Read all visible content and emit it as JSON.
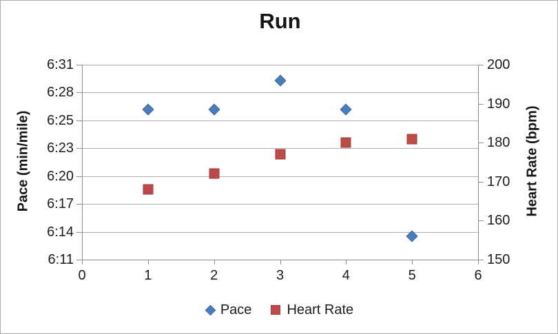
{
  "chart_data": {
    "type": "scatter",
    "title": "Run",
    "x_axis": {
      "min": 0,
      "max": 6,
      "tick_labels": [
        "0",
        "1",
        "2",
        "3",
        "4",
        "5",
        "6"
      ]
    },
    "left_axis": {
      "title": "Pace (min/mile)",
      "tick_labels_top_to_bottom": [
        "6:31",
        "6:28",
        "6:25",
        "6:23",
        "6:20",
        "6:17",
        "6:14",
        "6:11"
      ],
      "value_min_seconds": 371,
      "value_max_seconds": 391
    },
    "right_axis": {
      "title": "Heart Rate (bpm)",
      "min": 150,
      "max": 200,
      "tick_labels_top_to_bottom": [
        "200",
        "190",
        "180",
        "170",
        "160",
        "150"
      ]
    },
    "series": [
      {
        "name": "Pace",
        "axis": "left",
        "marker": "diamond",
        "fill_color": "#4a7ebb",
        "border_color": "#3a659c",
        "x": [
          1,
          2,
          3,
          4,
          5
        ],
        "values_display": [
          "6:26",
          "6:26",
          "6:29",
          "6:26",
          "6:13"
        ],
        "values_seconds": [
          386.4,
          386.4,
          389.4,
          386.4,
          373.4
        ]
      },
      {
        "name": "Heart Rate",
        "axis": "right",
        "marker": "square",
        "fill_color": "#be4b48",
        "border_color": "#9c3a38",
        "x": [
          1,
          2,
          3,
          4,
          5
        ],
        "values": [
          168,
          172,
          177,
          180,
          181
        ]
      }
    ],
    "legend": {
      "position": "bottom",
      "entries": [
        {
          "label": "Pace",
          "marker": "diamond",
          "color": "#4a7ebb",
          "border_color": "#3a659c"
        },
        {
          "label": "Heart Rate",
          "marker": "square",
          "color": "#be4b48",
          "border_color": "#9c3a38"
        }
      ]
    },
    "gridlines": "horizontal",
    "colors": {
      "axis_line": "#8a8a8a",
      "gridline": "#adadad",
      "text": "#1c1c1c",
      "background": "#ffffff",
      "frame_border": "#ababab"
    }
  }
}
